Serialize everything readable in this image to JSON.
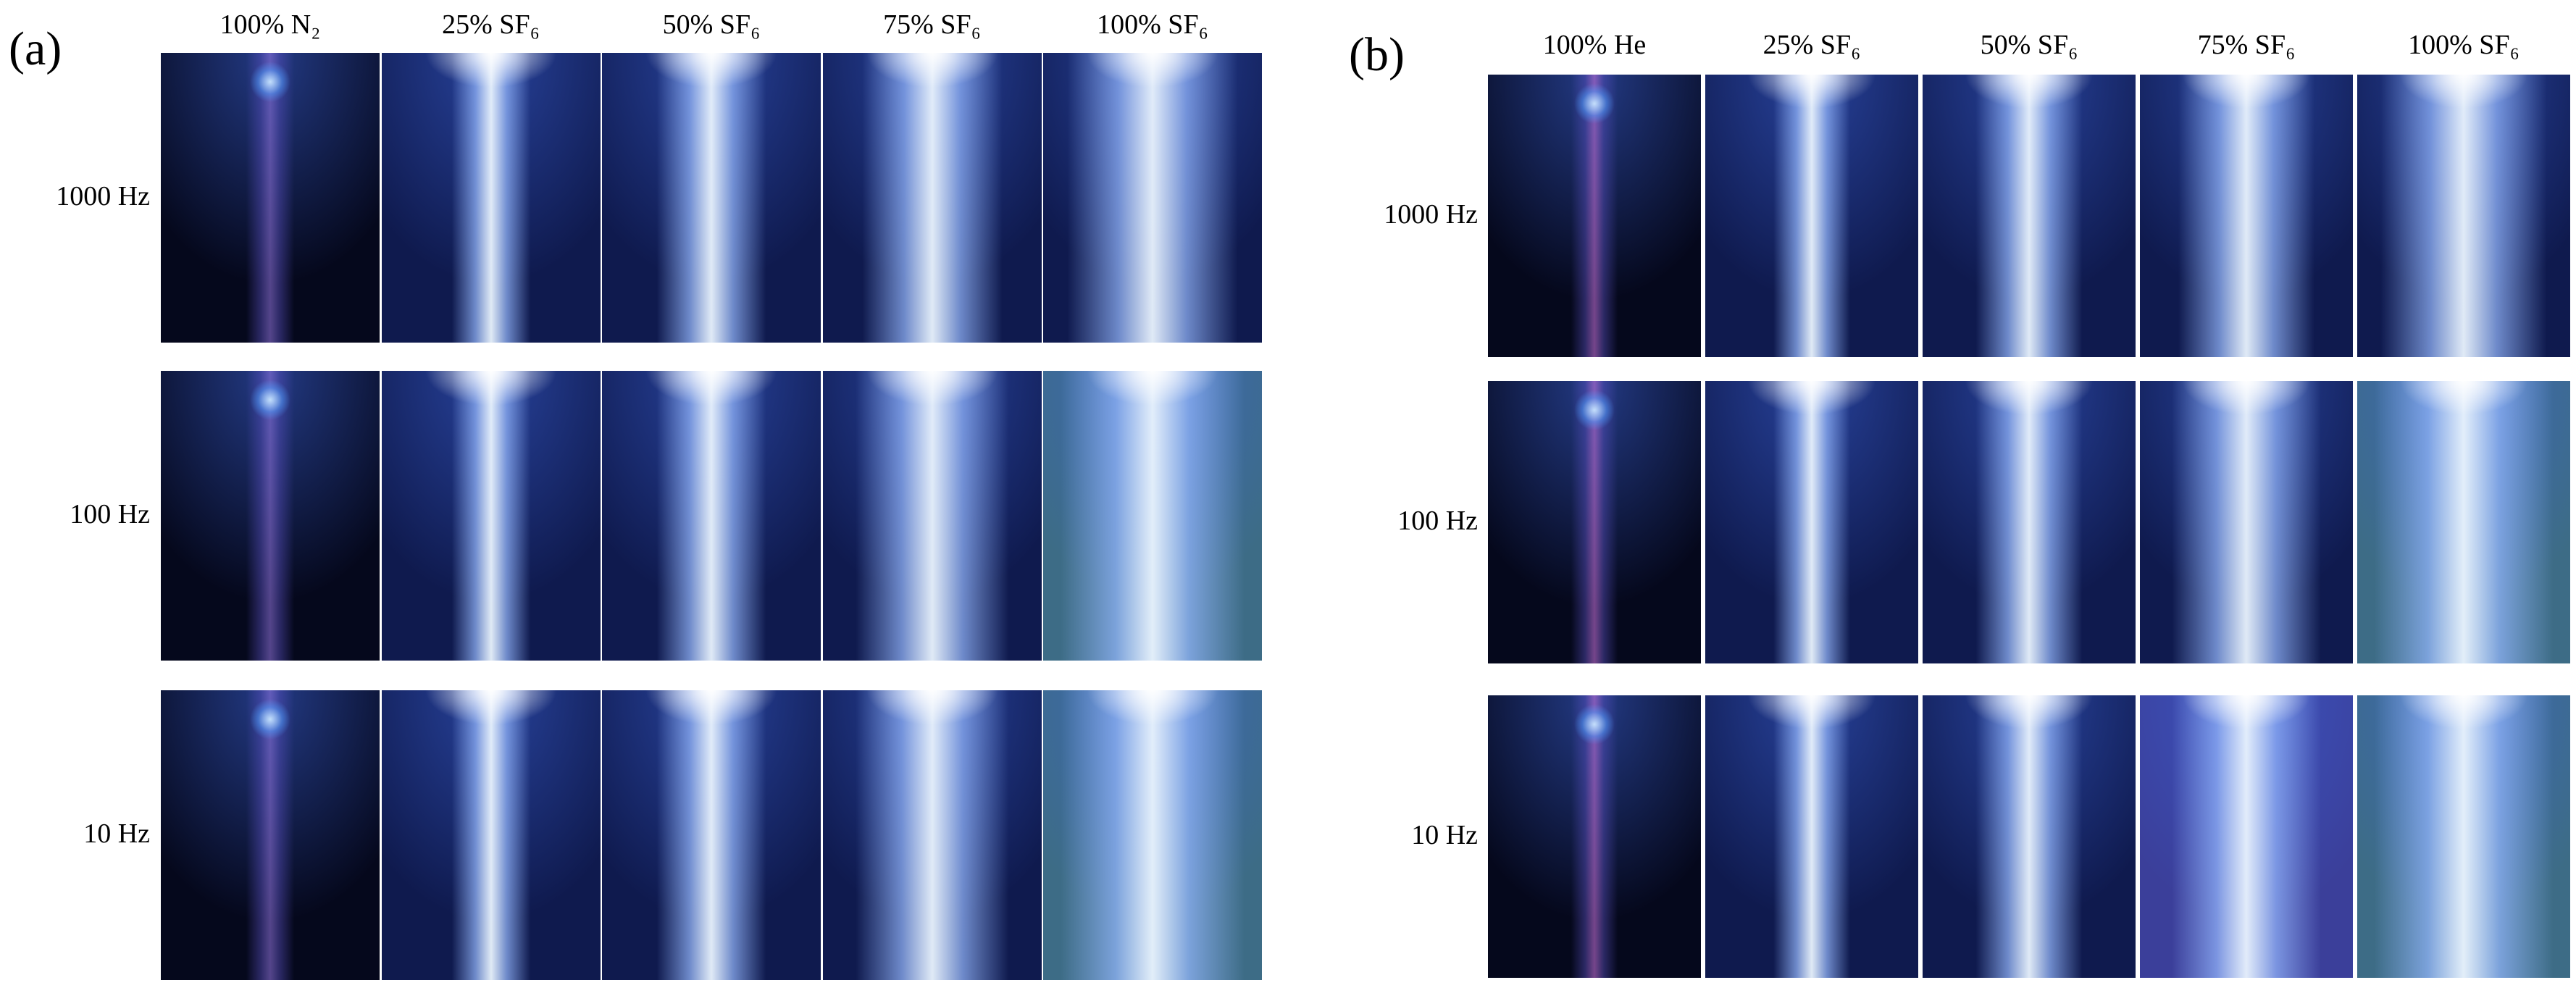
{
  "panels": [
    {
      "label": "(a)",
      "columns": [
        "100% N₂",
        "25% SF₆",
        "50% SF₆",
        "75% SF₆",
        "100% SF₆"
      ],
      "rows": [
        "1000 Hz",
        "100 Hz",
        "10 Hz"
      ]
    },
    {
      "label": "(b)",
      "columns": [
        "100% He",
        "25% SF₆",
        "50% SF₆",
        "75% SF₆",
        "100% SF₆"
      ],
      "rows": [
        "1000 Hz",
        "100 Hz",
        "10 Hz"
      ]
    }
  ]
}
